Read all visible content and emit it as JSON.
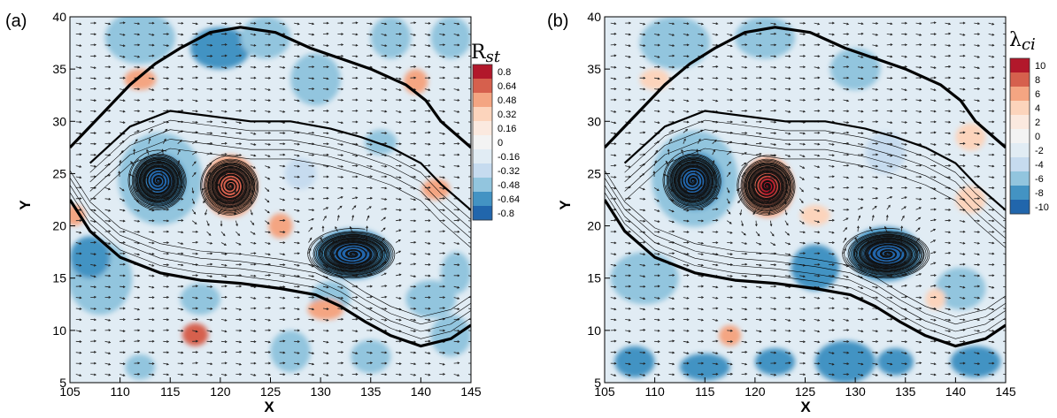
{
  "colors": {
    "red_dark": "#b2182b",
    "red_mid": "#e0674a",
    "red_light": "#f6b89b",
    "white": "#f7f7f7",
    "blue_light": "#b4d2e7",
    "blue_mid": "#5e9dca",
    "blue_dark": "#2166ac",
    "background": "#e6eef2"
  },
  "chart_data": [
    {
      "type": "contour",
      "panel_label": "(a)",
      "xlabel": "X",
      "ylabel": "Y",
      "xlim": [
        105,
        145
      ],
      "ylim": [
        5,
        40
      ],
      "xticks": [
        "105",
        "110",
        "115",
        "120",
        "125",
        "130",
        "135",
        "140",
        "145"
      ],
      "yticks": [
        "5",
        "10",
        "15",
        "20",
        "25",
        "30",
        "35",
        "40"
      ],
      "colorbar": {
        "title": "R",
        "title_sub": "st",
        "levels": [
          "0.8",
          "0.64",
          "0.48",
          "0.32",
          "0.16",
          "0",
          "-0.16",
          "-0.32",
          "-0.48",
          "-0.64",
          "-0.8"
        ],
        "colors": [
          "#b2182b",
          "#d6604d",
          "#f4a582",
          "#fcd4bc",
          "#fbe9df",
          "#f3f3f3",
          "#e1ecf4",
          "#c6dbef",
          "#92c5de",
          "#4393c3",
          "#2166ac"
        ]
      },
      "features": [
        {
          "kind": "vortex",
          "sign": "negative",
          "x": 113.8,
          "y": 24.3
        },
        {
          "kind": "vortex",
          "sign": "positive",
          "x": 121.0,
          "y": 23.8
        },
        {
          "kind": "vortex",
          "sign": "negative",
          "x": 133.2,
          "y": 17.3
        }
      ]
    },
    {
      "type": "contour",
      "panel_label": "(b)",
      "xlabel": "X",
      "ylabel": "Y",
      "xlim": [
        105,
        145
      ],
      "ylim": [
        5,
        40
      ],
      "xticks": [
        "105",
        "110",
        "115",
        "120",
        "125",
        "130",
        "135",
        "140",
        "145"
      ],
      "yticks": [
        "5",
        "10",
        "15",
        "20",
        "25",
        "30",
        "35",
        "40"
      ],
      "colorbar": {
        "title": "λ",
        "title_sub": "ci",
        "levels": [
          "10",
          "8",
          "6",
          "4",
          "2",
          "0",
          "-2",
          "-4",
          "-6",
          "-8",
          "-10"
        ],
        "colors": [
          "#b2182b",
          "#d6604d",
          "#f4a582",
          "#fcd4bc",
          "#fbe9df",
          "#f3f3f3",
          "#e1ecf4",
          "#c6dbef",
          "#92c5de",
          "#4393c3",
          "#2166ac"
        ]
      },
      "features": [
        {
          "kind": "vortex",
          "sign": "negative",
          "x": 113.8,
          "y": 24.3
        },
        {
          "kind": "vortex",
          "sign": "positive",
          "x": 121.2,
          "y": 23.8
        },
        {
          "kind": "vortex",
          "sign": "negative",
          "x": 133.2,
          "y": 17.3
        }
      ]
    }
  ]
}
